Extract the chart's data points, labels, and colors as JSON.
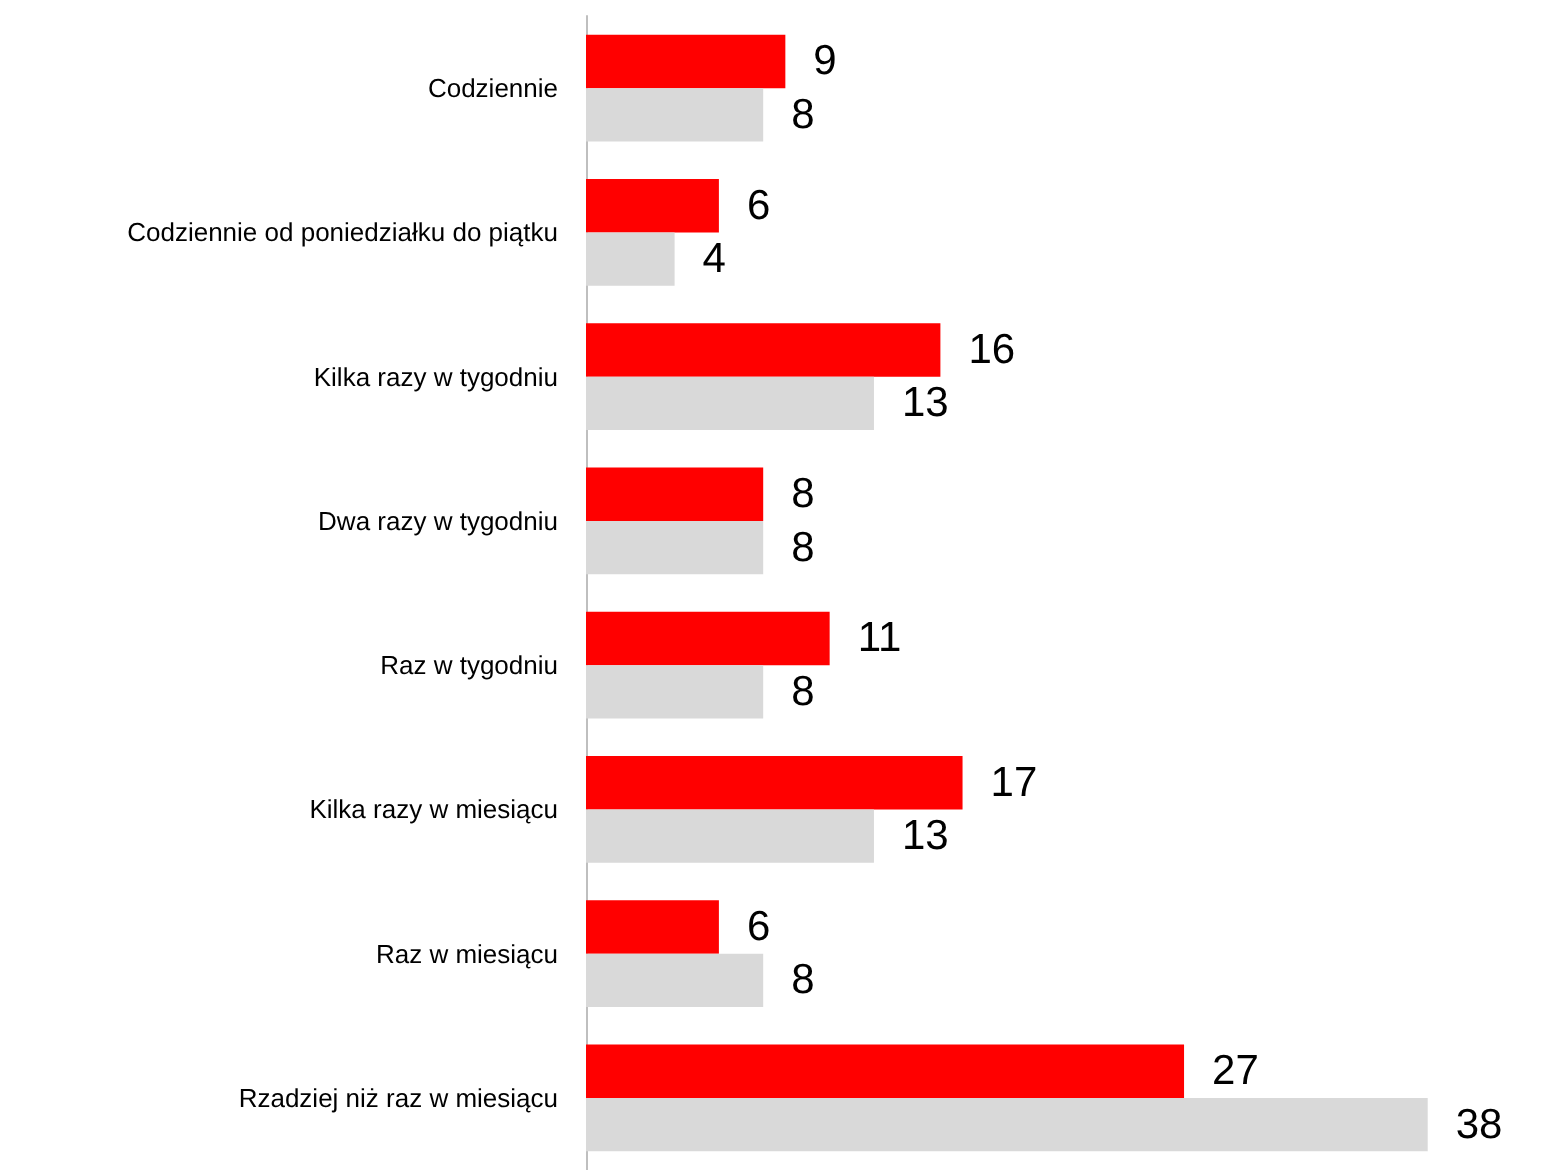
{
  "chart_data": {
    "type": "bar",
    "orientation": "horizontal",
    "data_labels": true,
    "categories": [
      "Codziennie",
      "Codziennie od poniedziałku do piątku",
      "Kilka razy w tygodniu",
      "Dwa razy w tygodniu",
      "Raz w tygodniu",
      "Kilka razy w miesiącu",
      "Raz w miesiącu",
      "Rzadziej niż raz w miesiącu"
    ],
    "series": [
      {
        "color": "#ff0000",
        "values": [
          9,
          6,
          16,
          8,
          11,
          17,
          6,
          27
        ]
      },
      {
        "color": "#d9d9d9",
        "values": [
          8,
          4,
          13,
          8,
          8,
          13,
          8,
          38
        ]
      }
    ]
  }
}
